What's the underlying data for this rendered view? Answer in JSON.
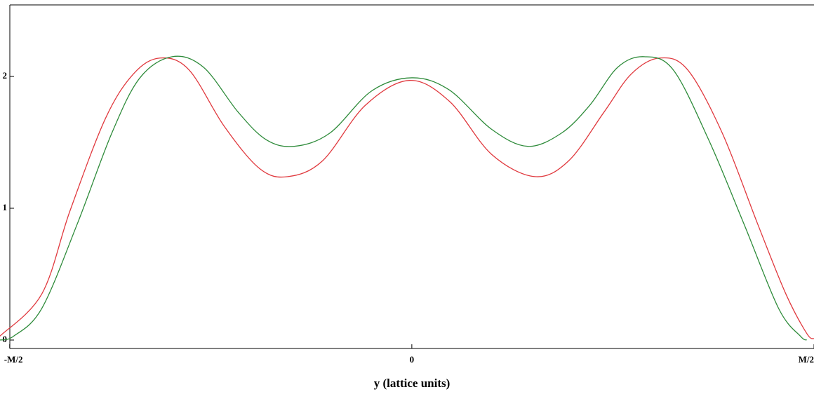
{
  "chart_data": {
    "type": "line",
    "xlabel": "y (lattice units)",
    "xlim": [
      -0.512,
      0.5
    ],
    "xticks": [
      {
        "value": -0.5,
        "label": "-M/2"
      },
      0,
      {
        "value": 0.5,
        "label": "M/2"
      }
    ],
    "ylim": [
      -0.064,
      2.543
    ],
    "yticks": [
      0,
      1,
      2
    ],
    "series": [
      {
        "color": "#e0393e",
        "x": [
          -0.512,
          -0.46,
          -0.425,
          -0.381,
          -0.346,
          -0.313,
          -0.277,
          -0.233,
          -0.189,
          -0.154,
          -0.111,
          -0.058,
          -0.003,
          0.047,
          0.099,
          0.153,
          0.195,
          0.239,
          0.273,
          0.308,
          0.343,
          0.386,
          0.43,
          0.465,
          0.491,
          0.5
        ],
        "values": [
          0.03,
          0.35,
          0.98,
          1.68,
          2.02,
          2.14,
          2.05,
          1.62,
          1.3,
          1.24,
          1.36,
          1.78,
          1.97,
          1.81,
          1.41,
          1.24,
          1.36,
          1.73,
          2.02,
          2.14,
          2.05,
          1.57,
          0.88,
          0.35,
          0.05,
          0.01
        ]
      },
      {
        "color": "#2e8b3a",
        "x": [
          -0.512,
          -0.495,
          -0.46,
          -0.416,
          -0.373,
          -0.338,
          -0.298,
          -0.259,
          -0.216,
          -0.181,
          -0.146,
          -0.102,
          -0.05,
          0,
          0.046,
          0.099,
          0.144,
          0.186,
          0.221,
          0.256,
          0.289,
          0.325,
          0.369,
          0.413,
          0.456,
          0.483,
          0.491
        ],
        "values": [
          0,
          0.03,
          0.24,
          0.88,
          1.57,
          1.99,
          2.15,
          2.07,
          1.73,
          1.52,
          1.47,
          1.57,
          1.89,
          1.99,
          1.9,
          1.6,
          1.47,
          1.57,
          1.78,
          2.07,
          2.15,
          2.05,
          1.52,
          0.88,
          0.24,
          0.03,
          0
        ]
      }
    ]
  }
}
